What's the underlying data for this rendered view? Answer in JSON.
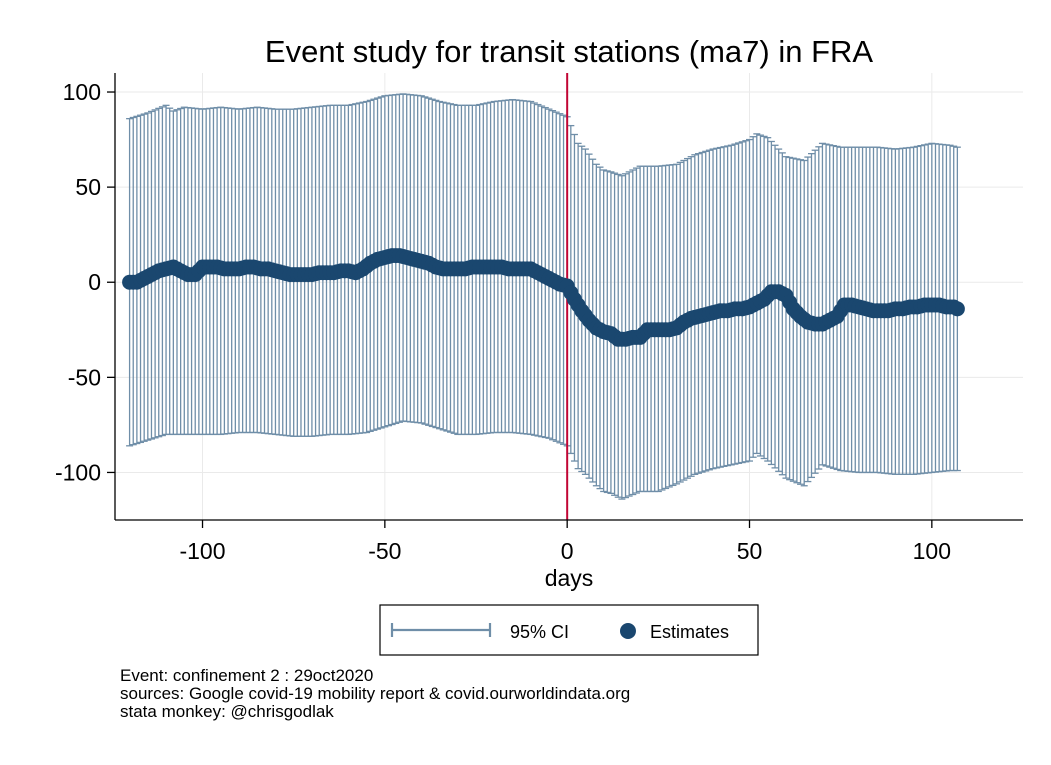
{
  "chart_data": {
    "type": "scatter",
    "title": "Event study for transit stations (ma7) in FRA",
    "xlabel": "days",
    "ylabel": "",
    "xlim": [
      -124,
      125
    ],
    "ylim": [
      -125,
      110
    ],
    "x_ticks": [
      -100,
      -50,
      0,
      50,
      100
    ],
    "y_ticks": [
      100,
      50,
      0,
      -50,
      -100
    ],
    "x_tick_labels": [
      "-100",
      "-50",
      "0",
      "50",
      "100"
    ],
    "y_tick_labels": [
      "100",
      "50",
      "0",
      "-50",
      "-100"
    ],
    "grid": true,
    "event_line_x": 0,
    "legend_position": "bottom",
    "series": [
      {
        "name": "95% CI",
        "kind": "range-cap",
        "x": [
          -120,
          -115,
          -110,
          -108,
          -105,
          -100,
          -95,
          -90,
          -85,
          -80,
          -75,
          -70,
          -65,
          -60,
          -55,
          -50,
          -45,
          -40,
          -35,
          -30,
          -25,
          -20,
          -15,
          -10,
          -5,
          0,
          3,
          5,
          8,
          10,
          12,
          15,
          20,
          25,
          30,
          35,
          40,
          45,
          50,
          52,
          55,
          60,
          65,
          70,
          75,
          80,
          85,
          90,
          95,
          100,
          105,
          107
        ],
        "upper": [
          86,
          89,
          93,
          90,
          92,
          91,
          92,
          91,
          92,
          91,
          91,
          92,
          93,
          93,
          95,
          98,
          99,
          98,
          95,
          93,
          93,
          95,
          96,
          95,
          91,
          87,
          73,
          70,
          62,
          59,
          58,
          56,
          61,
          61,
          62,
          67,
          70,
          72,
          75,
          78,
          76,
          66,
          64,
          73,
          71,
          71,
          71,
          70,
          71,
          73,
          72,
          71
        ],
        "lower": [
          -86,
          -83,
          -80,
          -80,
          -80,
          -80,
          -80,
          -79,
          -79,
          -80,
          -81,
          -81,
          -80,
          -80,
          -79,
          -76,
          -73,
          -74,
          -77,
          -80,
          -80,
          -79,
          -79,
          -80,
          -82,
          -86,
          -98,
          -101,
          -107,
          -110,
          -111,
          -114,
          -110,
          -110,
          -106,
          -101,
          -98,
          -96,
          -94,
          -90,
          -94,
          -103,
          -107,
          -96,
          -99,
          -100,
          -100,
          -101,
          -101,
          -100,
          -99,
          -99
        ]
      },
      {
        "name": "Estimates",
        "kind": "point",
        "x": [
          -120,
          -118,
          -116,
          -114,
          -112,
          -110,
          -108,
          -106,
          -104,
          -102,
          -100,
          -98,
          -96,
          -94,
          -92,
          -90,
          -88,
          -86,
          -84,
          -82,
          -80,
          -78,
          -76,
          -74,
          -72,
          -70,
          -68,
          -66,
          -64,
          -62,
          -60,
          -58,
          -56,
          -54,
          -52,
          -50,
          -48,
          -46,
          -44,
          -42,
          -40,
          -38,
          -36,
          -34,
          -32,
          -30,
          -28,
          -26,
          -24,
          -22,
          -20,
          -18,
          -16,
          -14,
          -12,
          -10,
          -8,
          -6,
          -4,
          -2,
          0,
          2,
          4,
          6,
          8,
          10,
          12,
          14,
          16,
          18,
          20,
          22,
          24,
          26,
          28,
          30,
          32,
          34,
          36,
          38,
          40,
          42,
          44,
          46,
          48,
          50,
          52,
          54,
          56,
          58,
          60,
          62,
          64,
          66,
          68,
          70,
          72,
          74,
          76,
          78,
          80,
          82,
          84,
          86,
          88,
          90,
          92,
          94,
          96,
          98,
          100,
          102,
          104,
          106,
          107
        ],
        "y": [
          0,
          0,
          2,
          4,
          6,
          7,
          8,
          6,
          4,
          4,
          8,
          8,
          8,
          7,
          7,
          7,
          8,
          8,
          7,
          7,
          6,
          5,
          4,
          4,
          4,
          4,
          5,
          5,
          5,
          6,
          6,
          5,
          7,
          10,
          12,
          13,
          14,
          14,
          13,
          12,
          11,
          10,
          8,
          7,
          7,
          7,
          7,
          8,
          8,
          8,
          8,
          8,
          7,
          7,
          7,
          7,
          5,
          3,
          1,
          -1,
          -2,
          -9,
          -15,
          -20,
          -24,
          -26,
          -27,
          -30,
          -30,
          -29,
          -29,
          -25,
          -25,
          -25,
          -25,
          -24,
          -21,
          -19,
          -18,
          -17,
          -16,
          -15,
          -15,
          -14,
          -14,
          -13,
          -11,
          -9,
          -5,
          -5,
          -7,
          -14,
          -18,
          -21,
          -22,
          -22,
          -20,
          -18,
          -12,
          -12,
          -13,
          -14,
          -15,
          -15,
          -15,
          -14,
          -14,
          -13,
          -13,
          -12,
          -12,
          -12,
          -13,
          -13,
          -14
        ]
      }
    ],
    "legend_entries": [
      "95% CI",
      "Estimates"
    ],
    "colors": {
      "ci": "#6f8ea8",
      "estimates": "#1a476f",
      "event_line": "#c10534",
      "grid": "#eaeaea",
      "axis": "#000000"
    }
  },
  "notes": [
    "Event: confinement 2 : 29oct2020",
    "sources: Google covid-19 mobility report & covid.ourworldindata.org",
    "stata monkey: @chrisgodlak"
  ]
}
